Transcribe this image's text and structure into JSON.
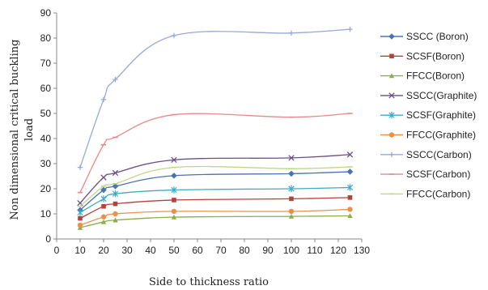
{
  "chart_data": {
    "type": "line",
    "title": "",
    "xlabel": "Side to thickness ratio",
    "ylabel_lines": [
      "Non dimensional critical buckling",
      "load"
    ],
    "xlim": [
      0,
      130
    ],
    "ylim": [
      0,
      90
    ],
    "xticks": [
      0,
      10,
      20,
      30,
      40,
      50,
      60,
      70,
      80,
      90,
      100,
      110,
      120,
      130
    ],
    "yticks": [
      0,
      10,
      20,
      30,
      40,
      50,
      60,
      70,
      80,
      90
    ],
    "grid": false,
    "legend_position": "right",
    "x": [
      10,
      20,
      25,
      50,
      100,
      125
    ],
    "series": [
      {
        "name": "SSCC (Boron)",
        "color": "#4a72b5",
        "marker": "diamond",
        "values": [
          11.5,
          19.5,
          21.0,
          25.2,
          26.0,
          26.8
        ]
      },
      {
        "name": "SCSF(Boron)",
        "color": "#b8403c",
        "marker": "square",
        "values": [
          8.2,
          13.0,
          14.0,
          15.5,
          16.0,
          16.5
        ]
      },
      {
        "name": "FFCC(Boron)",
        "color": "#8cae48",
        "marker": "triangle",
        "values": [
          4.5,
          6.8,
          7.5,
          8.7,
          9.0,
          9.2
        ]
      },
      {
        "name": "SSCC(Graphite)",
        "color": "#6b4f8c",
        "marker": "x",
        "values": [
          14.3,
          24.5,
          26.3,
          31.5,
          32.3,
          33.6
        ]
      },
      {
        "name": "SCSF(Graphite)",
        "color": "#3fa9c8",
        "marker": "star",
        "values": [
          10.5,
          16.0,
          18.0,
          19.5,
          20.0,
          20.5
        ]
      },
      {
        "name": "FFCC(Graphite)",
        "color": "#e8914a",
        "marker": "circle",
        "values": [
          5.5,
          8.8,
          10.0,
          11.0,
          11.0,
          11.8
        ]
      },
      {
        "name": "SSCC(Carbon)",
        "color": "#98a8d8",
        "marker": "plus",
        "values": [
          28.5,
          55.5,
          63.5,
          81.0,
          82.0,
          83.5
        ]
      },
      {
        "name": "SCSF(Carbon)",
        "color": "#e88a8a",
        "marker": "dash",
        "values": [
          18.5,
          37.5,
          40.5,
          49.5,
          48.5,
          50.0
        ]
      },
      {
        "name": "FFCC(Carbon)",
        "color": "#c2d68a",
        "marker": "dash",
        "values": [
          13.0,
          21.0,
          22.0,
          28.5,
          28.0,
          28.7
        ]
      }
    ]
  }
}
